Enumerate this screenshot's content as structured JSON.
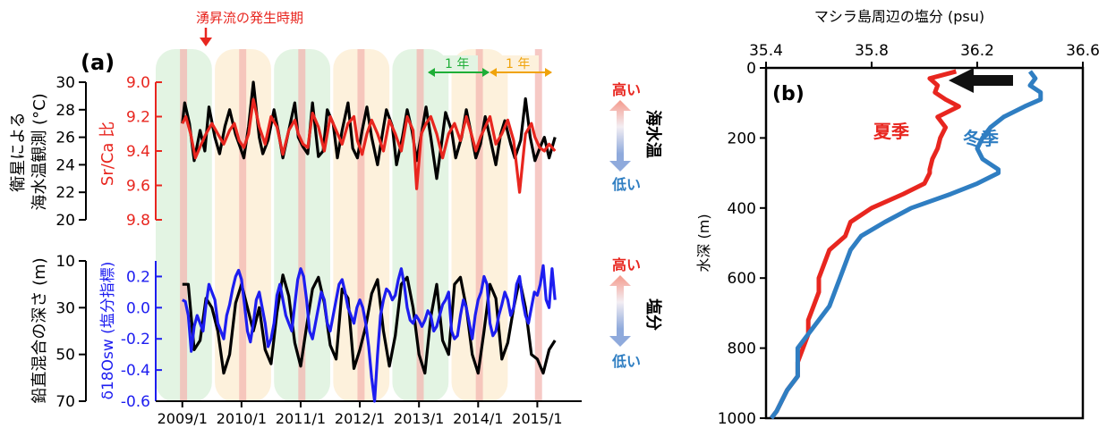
{
  "colors": {
    "red": "#e8261f",
    "blue": "#1d1df0",
    "lightblue": "#2f7ec2",
    "black": "#000000",
    "green_band": "#e3f4e3",
    "orange_band": "#fdf1dc",
    "upwelling_band": "#f3b7b2",
    "green_arrow": "#1fae37",
    "orange_arrow": "#f0a30a"
  },
  "annotations": {
    "upwelling_label": "湧昇流の発生時期",
    "one_year": "1 年",
    "high": "高い",
    "low": "低い",
    "sea_temp": "海水温",
    "salinity": "塩分"
  },
  "chart_data": [
    {
      "id": "a-top",
      "panel_label": "(a)",
      "type": "line",
      "x_tick_labels": [
        "2009/1",
        "2010/1",
        "2011/1",
        "2012/1",
        "2013/1",
        "2014/1",
        "2015/1"
      ],
      "x_ticks_year": [
        2009,
        2010,
        2011,
        2012,
        2013,
        2014,
        2015
      ],
      "xlim": [
        2008.55,
        2015.75
      ],
      "left_axis": {
        "label": "衛星による\n海水温観測 (°C)",
        "lim": [
          20,
          30
        ],
        "ticks": [
          "20",
          "22",
          "24",
          "26",
          "28",
          "30"
        ]
      },
      "right_axis": {
        "label": "Sr/Ca 比",
        "lim": [
          9.8,
          9.0
        ],
        "ticks": [
          "9.0",
          "9.2",
          "9.4",
          "9.6",
          "9.8"
        ]
      },
      "series": [
        {
          "axis": "left",
          "color": "#000000",
          "x": [
            2009.0,
            2009.04,
            2009.12,
            2009.2,
            2009.3,
            2009.38,
            2009.45,
            2009.55,
            2009.63,
            2009.72,
            2009.8,
            2009.9,
            2009.96,
            2010.04,
            2010.12,
            2010.2,
            2010.3,
            2010.36,
            2010.45,
            2010.55,
            2010.62,
            2010.7,
            2010.8,
            2010.9,
            2010.96,
            2011.04,
            2011.12,
            2011.2,
            2011.3,
            2011.38,
            2011.45,
            2011.55,
            2011.62,
            2011.7,
            2011.8,
            2011.88,
            2011.96,
            2012.04,
            2012.12,
            2012.2,
            2012.3,
            2012.38,
            2012.45,
            2012.55,
            2012.62,
            2012.72,
            2012.8,
            2012.88,
            2012.96,
            2013.04,
            2013.12,
            2013.2,
            2013.3,
            2013.38,
            2013.45,
            2013.55,
            2013.62,
            2013.72,
            2013.8,
            2013.88,
            2013.96,
            2014.04,
            2014.12,
            2014.2,
            2014.3,
            2014.38,
            2014.45,
            2014.55,
            2014.62,
            2014.72,
            2014.8,
            2014.88,
            2014.96,
            2015.04,
            2015.12,
            2015.2,
            2015.3
          ],
          "y": [
            27.0,
            28.5,
            27.0,
            24.3,
            26.5,
            25.0,
            28.2,
            26.0,
            24.8,
            26.8,
            28.0,
            26.2,
            25.5,
            24.5,
            26.8,
            30.0,
            26.0,
            24.8,
            25.8,
            28.0,
            26.5,
            24.5,
            26.5,
            28.5,
            26.0,
            25.3,
            24.8,
            28.5,
            24.6,
            25.0,
            28.0,
            27.0,
            24.5,
            26.5,
            28.5,
            25.2,
            24.5,
            26.5,
            28.2,
            26.0,
            24.0,
            26.2,
            28.0,
            26.8,
            24.0,
            26.0,
            28.0,
            26.5,
            24.3,
            26.2,
            28.2,
            26.0,
            23.0,
            25.5,
            27.8,
            26.5,
            24.5,
            26.0,
            28.0,
            26.3,
            24.5,
            25.5,
            27.5,
            26.0,
            24.0,
            26.2,
            27.2,
            25.5,
            24.5,
            25.8,
            28.8,
            26.0,
            24.3,
            25.2,
            26.0,
            24.5,
            26.0
          ]
        },
        {
          "axis": "right",
          "color": "#e8261f",
          "x": [
            2009.0,
            2009.06,
            2009.14,
            2009.22,
            2009.32,
            2009.4,
            2009.5,
            2009.6,
            2009.7,
            2009.8,
            2009.88,
            2009.96,
            2010.04,
            2010.12,
            2010.2,
            2010.3,
            2010.4,
            2010.5,
            2010.6,
            2010.7,
            2010.8,
            2010.9,
            2010.96,
            2011.04,
            2011.12,
            2011.2,
            2011.3,
            2011.4,
            2011.5,
            2011.6,
            2011.7,
            2011.8,
            2011.9,
            2011.96,
            2012.04,
            2012.12,
            2012.2,
            2012.3,
            2012.4,
            2012.5,
            2012.6,
            2012.7,
            2012.8,
            2012.9,
            2012.96,
            2013.04,
            2013.12,
            2013.2,
            2013.3,
            2013.4,
            2013.5,
            2013.6,
            2013.7,
            2013.8,
            2013.9,
            2013.96,
            2014.04,
            2014.12,
            2014.2,
            2014.3,
            2014.4,
            2014.5,
            2014.6,
            2014.7,
            2014.8,
            2014.9,
            2014.96,
            2015.04,
            2015.12,
            2015.2,
            2015.3
          ],
          "y": [
            9.24,
            9.2,
            9.3,
            9.44,
            9.36,
            9.3,
            9.24,
            9.3,
            9.36,
            9.28,
            9.24,
            9.34,
            9.38,
            9.3,
            9.1,
            9.26,
            9.36,
            9.2,
            9.26,
            9.42,
            9.28,
            9.22,
            9.3,
            9.36,
            9.38,
            9.18,
            9.26,
            9.4,
            9.2,
            9.28,
            9.36,
            9.24,
            9.2,
            9.34,
            9.42,
            9.3,
            9.22,
            9.3,
            9.4,
            9.22,
            9.3,
            9.4,
            9.2,
            9.28,
            9.62,
            9.3,
            9.24,
            9.2,
            9.3,
            9.44,
            9.3,
            9.24,
            9.34,
            9.2,
            9.32,
            9.4,
            9.32,
            9.26,
            9.2,
            9.36,
            9.3,
            9.22,
            9.34,
            9.64,
            9.3,
            9.24,
            9.32,
            9.38,
            9.4,
            9.36,
            9.4
          ]
        }
      ]
    },
    {
      "id": "a-bottom",
      "type": "line",
      "left_axis": {
        "label": "鉛直混合の深さ (m)",
        "lim": [
          70,
          10
        ],
        "ticks": [
          "10",
          "30",
          "50",
          "70"
        ]
      },
      "right_axis": {
        "label": "δ18Osw (塩分指標)",
        "lim": [
          -0.6,
          0.3
        ],
        "ticks": [
          "0.2",
          "0.0",
          "-0.2",
          "-0.4",
          "-0.6"
        ]
      },
      "series": [
        {
          "axis": "left",
          "color": "#000000",
          "x": [
            2009.0,
            2009.1,
            2009.2,
            2009.3,
            2009.4,
            2009.5,
            2009.6,
            2009.7,
            2009.8,
            2009.9,
            2010.0,
            2010.1,
            2010.2,
            2010.3,
            2010.4,
            2010.5,
            2010.6,
            2010.7,
            2010.8,
            2010.9,
            2011.0,
            2011.1,
            2011.2,
            2011.3,
            2011.4,
            2011.5,
            2011.6,
            2011.7,
            2011.8,
            2011.9,
            2012.0,
            2012.1,
            2012.2,
            2012.3,
            2012.4,
            2012.5,
            2012.6,
            2012.7,
            2012.8,
            2012.9,
            2013.0,
            2013.1,
            2013.2,
            2013.3,
            2013.4,
            2013.5,
            2013.6,
            2013.7,
            2013.8,
            2013.9,
            2014.0,
            2014.1,
            2014.2,
            2014.3,
            2014.4,
            2014.5,
            2014.6,
            2014.7,
            2014.8,
            2014.9,
            2015.0,
            2015.1,
            2015.2,
            2015.3
          ],
          "y": [
            20,
            20,
            48,
            44,
            26,
            30,
            40,
            58,
            50,
            28,
            20,
            30,
            40,
            30,
            48,
            54,
            32,
            16,
            25,
            45,
            55,
            38,
            22,
            17,
            28,
            46,
            52,
            22,
            26,
            56,
            48,
            38,
            24,
            18,
            40,
            55,
            42,
            20,
            17,
            30,
            50,
            58,
            34,
            20,
            44,
            50,
            20,
            17,
            30,
            50,
            58,
            40,
            20,
            26,
            52,
            45,
            30,
            18,
            30,
            50,
            52,
            58,
            48,
            44
          ]
        },
        {
          "axis": "right",
          "color": "#1d1df0",
          "x": [
            2009.0,
            2009.05,
            2009.1,
            2009.15,
            2009.2,
            2009.25,
            2009.3,
            2009.35,
            2009.4,
            2009.45,
            2009.5,
            2009.55,
            2009.6,
            2009.65,
            2009.7,
            2009.75,
            2009.8,
            2009.85,
            2009.9,
            2009.95,
            2010.0,
            2010.05,
            2010.1,
            2010.15,
            2010.2,
            2010.25,
            2010.3,
            2010.35,
            2010.4,
            2010.45,
            2010.5,
            2010.55,
            2010.6,
            2010.65,
            2010.7,
            2010.75,
            2010.8,
            2010.85,
            2010.9,
            2010.95,
            2011.0,
            2011.05,
            2011.1,
            2011.15,
            2011.2,
            2011.25,
            2011.3,
            2011.35,
            2011.4,
            2011.45,
            2011.5,
            2011.55,
            2011.6,
            2011.65,
            2011.7,
            2011.75,
            2011.8,
            2011.85,
            2011.9,
            2011.95,
            2012.0,
            2012.05,
            2012.1,
            2012.15,
            2012.2,
            2012.25,
            2012.3,
            2012.35,
            2012.4,
            2012.45,
            2012.5,
            2012.55,
            2012.6,
            2012.65,
            2012.7,
            2012.75,
            2012.8,
            2012.85,
            2012.9,
            2012.95,
            2013.0,
            2013.05,
            2013.1,
            2013.15,
            2013.2,
            2013.25,
            2013.3,
            2013.35,
            2013.4,
            2013.45,
            2013.5,
            2013.55,
            2013.6,
            2013.65,
            2013.7,
            2013.75,
            2013.8,
            2013.85,
            2013.9,
            2013.95,
            2014.0,
            2014.05,
            2014.1,
            2014.15,
            2014.2,
            2014.25,
            2014.3,
            2014.35,
            2014.4,
            2014.45,
            2014.5,
            2014.55,
            2014.6,
            2014.65,
            2014.7,
            2014.75,
            2014.8,
            2014.85,
            2014.9,
            2014.95,
            2015.0,
            2015.05,
            2015.1,
            2015.15,
            2015.2,
            2015.25,
            2015.3
          ],
          "y": [
            0.05,
            0.04,
            -0.05,
            -0.28,
            -0.12,
            -0.05,
            -0.1,
            -0.15,
            0.02,
            0.15,
            0.1,
            0.05,
            -0.1,
            -0.15,
            -0.2,
            -0.05,
            0.02,
            0.12,
            0.2,
            0.24,
            0.18,
            0.02,
            -0.15,
            -0.22,
            -0.1,
            0.05,
            0.1,
            0.0,
            -0.1,
            -0.25,
            -0.2,
            -0.1,
            0.08,
            0.15,
            0.05,
            -0.05,
            -0.1,
            -0.15,
            0.02,
            0.18,
            0.25,
            0.2,
            0.05,
            -0.15,
            -0.2,
            -0.1,
            0.0,
            0.1,
            0.05,
            -0.1,
            -0.15,
            -0.05,
            0.05,
            0.15,
            0.18,
            0.1,
            0.0,
            -0.05,
            -0.1,
            0.0,
            0.05,
            0.0,
            -0.1,
            -0.25,
            -0.45,
            -0.6,
            -0.3,
            -0.05,
            0.05,
            0.12,
            0.1,
            0.05,
            0.08,
            0.18,
            0.25,
            0.15,
            0.0,
            -0.08,
            -0.1,
            -0.05,
            -0.08,
            -0.12,
            -0.08,
            -0.02,
            -0.05,
            -0.15,
            -0.12,
            -0.05,
            0.02,
            0.05,
            0.1,
            -0.15,
            -0.2,
            -0.18,
            -0.05,
            0.05,
            0.0,
            -0.1,
            -0.2,
            -0.05,
            0.05,
            0.1,
            0.2,
            0.15,
            -0.1,
            -0.18,
            -0.15,
            -0.05,
            0.02,
            0.1,
            0.05,
            -0.05,
            0.0,
            0.15,
            0.2,
            0.05,
            -0.05,
            -0.1,
            0.0,
            0.1,
            0.08,
            0.15,
            0.27,
            0.05,
            0.0,
            0.25,
            0.05
          ]
        }
      ]
    },
    {
      "id": "b",
      "panel_label": "(b)",
      "type": "line",
      "xlabel": "マシラ島周辺の塩分 (psu)",
      "ylabel": "水深 (m)",
      "xlim": [
        35.4,
        36.6
      ],
      "ylim": [
        1000,
        0
      ],
      "x_ticks": [
        "35.4",
        "35.8",
        "36.2",
        "36.6"
      ],
      "y_ticks": [
        "0",
        "200",
        "400",
        "600",
        "800",
        "1000"
      ],
      "series": [
        {
          "name": "夏季",
          "color": "#e8261f",
          "x": [
            36.12,
            36.02,
            36.05,
            36.04,
            36.08,
            36.13,
            36.05,
            36.08,
            36.06,
            36.05,
            36.03,
            36.02,
            36.02,
            36.0,
            35.92,
            35.8,
            35.72,
            35.7,
            35.64,
            35.62,
            35.6,
            35.6,
            35.58,
            35.56,
            35.56,
            35.54,
            35.52,
            35.52,
            35.48,
            35.46,
            35.44,
            35.42
          ],
          "y": [
            10,
            30,
            50,
            70,
            90,
            110,
            140,
            170,
            200,
            230,
            260,
            290,
            300,
            330,
            360,
            400,
            440,
            480,
            520,
            560,
            600,
            640,
            680,
            720,
            760,
            800,
            840,
            880,
            920,
            950,
            980,
            1000
          ]
        },
        {
          "name": "冬季",
          "color": "#2f7ec2",
          "x": [
            36.4,
            36.42,
            36.4,
            36.44,
            36.44,
            36.38,
            36.3,
            36.25,
            36.22,
            36.2,
            36.22,
            36.28,
            36.28,
            36.2,
            36.1,
            35.95,
            35.85,
            35.76,
            35.72,
            35.7,
            35.68,
            35.66,
            35.64,
            35.6,
            35.56,
            35.52,
            35.52,
            35.52,
            35.48,
            35.46,
            35.44,
            35.42
          ],
          "y": [
            10,
            30,
            50,
            70,
            90,
            110,
            140,
            170,
            200,
            230,
            260,
            290,
            300,
            330,
            360,
            400,
            440,
            480,
            520,
            560,
            600,
            640,
            680,
            720,
            760,
            800,
            840,
            880,
            920,
            950,
            980,
            1000
          ]
        }
      ]
    }
  ]
}
